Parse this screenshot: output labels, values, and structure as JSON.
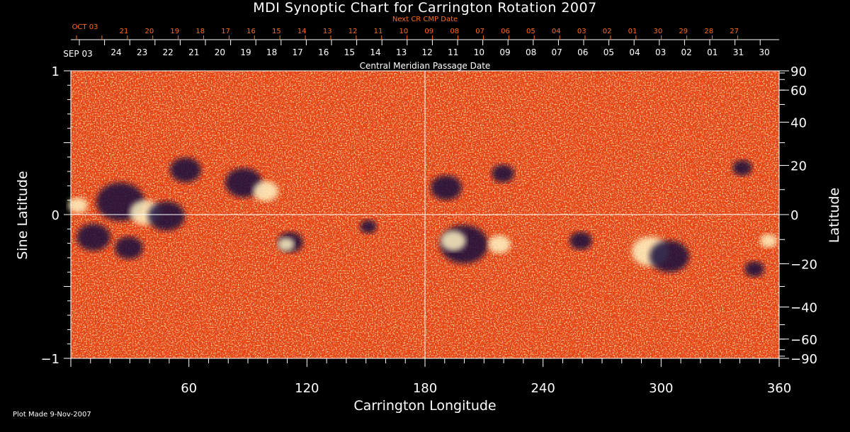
{
  "chart_data": {
    "type": "heatmap",
    "title": "MDI Synoptic Chart for Carrington Rotation 2007",
    "xlabel": "Carrington Longitude",
    "ylabel": "Sine Latitude",
    "ylabel_right": "Latitude",
    "xlim": [
      0,
      360
    ],
    "ylim": [
      -1,
      1
    ],
    "x_ticks": [
      60,
      120,
      180,
      240,
      300,
      360
    ],
    "y_ticks_left": [
      {
        "value": 1,
        "label": "1"
      },
      {
        "value": 0,
        "label": "0"
      },
      {
        "value": -1,
        "label": "−1"
      }
    ],
    "y_ticks_right": [
      {
        "deg": 90,
        "label": "90"
      },
      {
        "deg": 60,
        "label": "60"
      },
      {
        "deg": 40,
        "label": "40"
      },
      {
        "deg": 20,
        "label": "20"
      },
      {
        "deg": 0,
        "label": "0"
      },
      {
        "deg": -20,
        "label": "−20"
      },
      {
        "deg": -40,
        "label": "−40"
      },
      {
        "deg": -60,
        "label": "−60"
      },
      {
        "deg": -90,
        "label": "−90"
      }
    ],
    "top_axis_label": "Central Meridian Passage Date",
    "top_axis_start": "SEP 03",
    "top_axis_dates": [
      "24",
      "23",
      "22",
      "21",
      "20",
      "19",
      "18",
      "17",
      "16",
      "15",
      "14",
      "13",
      "12",
      "11",
      "10",
      "09",
      "08",
      "07",
      "06",
      "05",
      "04",
      "03",
      "02",
      "01",
      "31",
      "30"
    ],
    "next_axis_label": "Next CR CMP Date",
    "next_axis_start": "OCT 03",
    "next_axis_dates": [
      "21",
      "20",
      "19",
      "18",
      "17",
      "16",
      "15",
      "14",
      "13",
      "12",
      "11",
      "10",
      "09",
      "08",
      "07",
      "06",
      "05",
      "04",
      "03",
      "02",
      "01",
      "30",
      "29",
      "28",
      "27"
    ],
    "grid": false,
    "guide_lines": {
      "longitude": 180,
      "sine_latitude": 0
    },
    "colors": {
      "background": "#000000",
      "map_base": "#e8420d",
      "positive": "#fff4c2",
      "negative": "#140a3c",
      "next_axis": "#ff6a1a",
      "axis": "#ffffff"
    }
  },
  "footer": {
    "plot_made": "Plot Made  9-Nov-2007"
  }
}
